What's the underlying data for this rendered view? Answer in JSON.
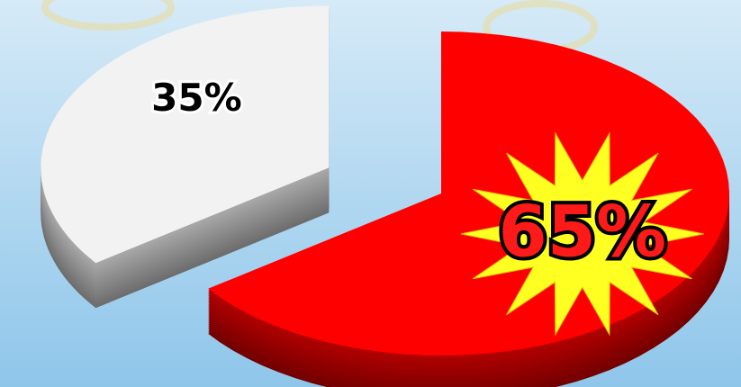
{
  "chart_data": {
    "type": "pie",
    "values": [
      35,
      65
    ],
    "value_labels": [
      "35%",
      "65%"
    ],
    "colors": [
      "#f2f2f2",
      "#ff0000"
    ]
  }
}
